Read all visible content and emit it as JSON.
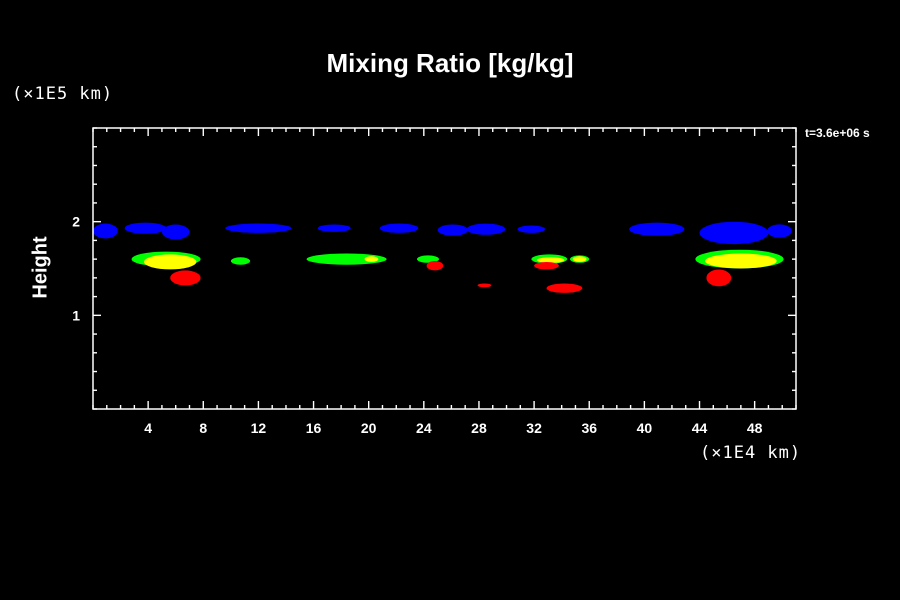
{
  "chart_data": {
    "type": "heatmap",
    "title": "Mixing Ratio [kg/kg]",
    "ylabel": "Height",
    "yunit": "(×1E5 km)",
    "xunit": "(×1E4 km)",
    "time_label": "t=3.6e+06 s",
    "xlim": [
      0,
      51
    ],
    "ylim": [
      0,
      3
    ],
    "xticks": [
      4,
      8,
      12,
      16,
      20,
      24,
      28,
      32,
      36,
      40,
      44,
      48
    ],
    "yticks": [
      1,
      2
    ],
    "xtick_labels": [
      "4",
      "8",
      "12",
      "16",
      "20",
      "24",
      "28",
      "32",
      "36",
      "40",
      "44",
      "48"
    ],
    "ytick_labels": [
      "1",
      "2"
    ],
    "colors": {
      "background": "#000000",
      "frame": "#ffffff",
      "level1": "#0000ff",
      "level2": "#00ff00",
      "level3": "#ffff00",
      "level4": "#ff0000"
    },
    "regions": [
      {
        "level": "level1",
        "x": 0.9,
        "y": 1.9,
        "rx": 0.9,
        "ry": 0.08
      },
      {
        "level": "level1",
        "x": 3.8,
        "y": 1.93,
        "rx": 1.5,
        "ry": 0.06
      },
      {
        "level": "level1",
        "x": 6.0,
        "y": 1.89,
        "rx": 1.0,
        "ry": 0.08
      },
      {
        "level": "level1",
        "x": 12.0,
        "y": 1.93,
        "rx": 2.4,
        "ry": 0.05
      },
      {
        "level": "level1",
        "x": 17.5,
        "y": 1.93,
        "rx": 1.2,
        "ry": 0.04
      },
      {
        "level": "level1",
        "x": 22.2,
        "y": 1.93,
        "rx": 1.4,
        "ry": 0.05
      },
      {
        "level": "level1",
        "x": 26.1,
        "y": 1.91,
        "rx": 1.1,
        "ry": 0.06
      },
      {
        "level": "level1",
        "x": 28.5,
        "y": 1.92,
        "rx": 1.4,
        "ry": 0.06
      },
      {
        "level": "level1",
        "x": 31.8,
        "y": 1.92,
        "rx": 1.0,
        "ry": 0.04
      },
      {
        "level": "level1",
        "x": 40.9,
        "y": 1.92,
        "rx": 2.0,
        "ry": 0.07
      },
      {
        "level": "level1",
        "x": 46.5,
        "y": 1.88,
        "rx": 2.5,
        "ry": 0.12
      },
      {
        "level": "level1",
        "x": 49.8,
        "y": 1.9,
        "rx": 0.9,
        "ry": 0.07
      },
      {
        "level": "level2",
        "x": 5.3,
        "y": 1.6,
        "rx": 2.5,
        "ry": 0.08
      },
      {
        "level": "level2",
        "x": 10.7,
        "y": 1.58,
        "rx": 0.7,
        "ry": 0.04
      },
      {
        "level": "level2",
        "x": 18.4,
        "y": 1.6,
        "rx": 2.9,
        "ry": 0.06
      },
      {
        "level": "level2",
        "x": 24.3,
        "y": 1.6,
        "rx": 0.8,
        "ry": 0.04
      },
      {
        "level": "level2",
        "x": 33.1,
        "y": 1.6,
        "rx": 1.3,
        "ry": 0.05
      },
      {
        "level": "level2",
        "x": 35.3,
        "y": 1.6,
        "rx": 0.7,
        "ry": 0.04
      },
      {
        "level": "level2",
        "x": 46.9,
        "y": 1.6,
        "rx": 3.2,
        "ry": 0.1
      },
      {
        "level": "level3",
        "x": 5.6,
        "y": 1.57,
        "rx": 1.9,
        "ry": 0.08
      },
      {
        "level": "level3",
        "x": 20.2,
        "y": 1.6,
        "rx": 0.5,
        "ry": 0.03
      },
      {
        "level": "level3",
        "x": 33.2,
        "y": 1.59,
        "rx": 1.0,
        "ry": 0.03
      },
      {
        "level": "level3",
        "x": 35.3,
        "y": 1.6,
        "rx": 0.5,
        "ry": 0.03
      },
      {
        "level": "level3",
        "x": 47.0,
        "y": 1.58,
        "rx": 2.6,
        "ry": 0.08
      },
      {
        "level": "level4",
        "x": 6.7,
        "y": 1.4,
        "rx": 1.1,
        "ry": 0.08
      },
      {
        "level": "level4",
        "x": 24.8,
        "y": 1.53,
        "rx": 0.6,
        "ry": 0.05
      },
      {
        "level": "level4",
        "x": 28.4,
        "y": 1.32,
        "rx": 0.5,
        "ry": 0.02
      },
      {
        "level": "level4",
        "x": 32.9,
        "y": 1.53,
        "rx": 0.9,
        "ry": 0.04
      },
      {
        "level": "level4",
        "x": 34.2,
        "y": 1.29,
        "rx": 1.3,
        "ry": 0.05
      },
      {
        "level": "level4",
        "x": 45.4,
        "y": 1.4,
        "rx": 0.9,
        "ry": 0.09
      }
    ]
  }
}
